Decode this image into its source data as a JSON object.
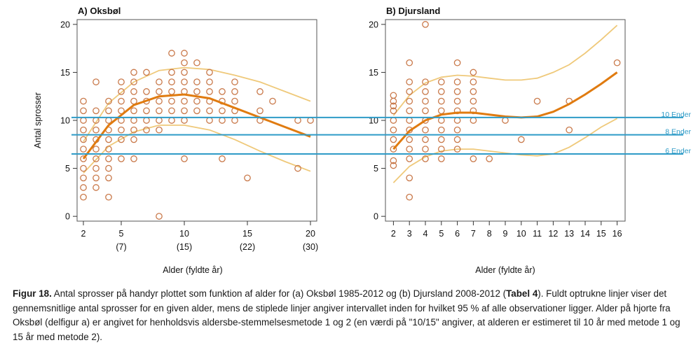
{
  "y_axis_label": "Antal sprosser",
  "reference_lines": [
    {
      "label": "10 Ender",
      "value": 10.3
    },
    {
      "label": "8 Ender",
      "value": 8.5
    },
    {
      "label": "6 Ender",
      "value": 6.5
    }
  ],
  "colors": {
    "point": "#c9794a",
    "mean_line": "#e07b10",
    "ci_line": "#efc97a",
    "reference_line": "#2e9bc7",
    "reference_label": "#2e9bc7"
  },
  "caption": {
    "lead": "Figur 18.",
    "text1": " Antal sprosser på handyr plottet som funktion af alder for (a) Oksbøl 1985-2012 og (b) Djursland 2008-2012 (",
    "bold_ref": "Tabel 4",
    "text2": "). Fuldt optrukne linjer viser det gennemsnitlige antal sprosser for en given alder, mens de stiplede linjer angiver intervallet inden for hvilket 95 % af alle observationer ligger. Alder på hjorte fra Oksbøl (delfigur a) er angivet for henholdsvis aldersbe-stemmelsesmetode 1 og 2 (en værdi på \"10/15\" angiver, at alderen er estimeret til 10 år med metode 1 og 15 år med metode 2)."
  },
  "chart_data": [
    {
      "type": "scatter",
      "title": "A) Oksbøl",
      "xlabel": "Alder (fyldte år)",
      "ylabel": "Antal sprosser",
      "xlim": [
        1.5,
        20.5
      ],
      "ylim": [
        -0.5,
        20.5
      ],
      "x_ticks": [
        2,
        5,
        10,
        15,
        20
      ],
      "x_ticks_secondary": [
        "(7)",
        "(15)",
        "(22)",
        "(30)"
      ],
      "x_ticks_secondary_at": [
        5,
        10,
        15,
        20
      ],
      "y_ticks": [
        0,
        5,
        10,
        15,
        20
      ],
      "points": [
        [
          2,
          2
        ],
        [
          2,
          3
        ],
        [
          2,
          4
        ],
        [
          2,
          5
        ],
        [
          2,
          6
        ],
        [
          2,
          7
        ],
        [
          2,
          8
        ],
        [
          2,
          9
        ],
        [
          2,
          10
        ],
        [
          2,
          11
        ],
        [
          2,
          12
        ],
        [
          3,
          3
        ],
        [
          3,
          4
        ],
        [
          3,
          5
        ],
        [
          3,
          6
        ],
        [
          3,
          7
        ],
        [
          3,
          8
        ],
        [
          3,
          9
        ],
        [
          3,
          10
        ],
        [
          3,
          11
        ],
        [
          3,
          14
        ],
        [
          4,
          2
        ],
        [
          4,
          4
        ],
        [
          4,
          5
        ],
        [
          4,
          6
        ],
        [
          4,
          7
        ],
        [
          4,
          8
        ],
        [
          4,
          9
        ],
        [
          4,
          10
        ],
        [
          4,
          11
        ],
        [
          4,
          12
        ],
        [
          5,
          6
        ],
        [
          5,
          8
        ],
        [
          5,
          9
        ],
        [
          5,
          10
        ],
        [
          5,
          11
        ],
        [
          5,
          12
        ],
        [
          5,
          13
        ],
        [
          5,
          14
        ],
        [
          6,
          6
        ],
        [
          6,
          8
        ],
        [
          6,
          9
        ],
        [
          6,
          10
        ],
        [
          6,
          11
        ],
        [
          6,
          12
        ],
        [
          6,
          13
        ],
        [
          6,
          14
        ],
        [
          6,
          15
        ],
        [
          7,
          9
        ],
        [
          7,
          10
        ],
        [
          7,
          11
        ],
        [
          7,
          12
        ],
        [
          7,
          13
        ],
        [
          7,
          15
        ],
        [
          8,
          0
        ],
        [
          8,
          9
        ],
        [
          8,
          10
        ],
        [
          8,
          11
        ],
        [
          8,
          12
        ],
        [
          8,
          13
        ],
        [
          8,
          14
        ],
        [
          9,
          10
        ],
        [
          9,
          11
        ],
        [
          9,
          12
        ],
        [
          9,
          13
        ],
        [
          9,
          14
        ],
        [
          9,
          15
        ],
        [
          9,
          17
        ],
        [
          10,
          6
        ],
        [
          10,
          10
        ],
        [
          10,
          11
        ],
        [
          10,
          12
        ],
        [
          10,
          13
        ],
        [
          10,
          14
        ],
        [
          10,
          15
        ],
        [
          10,
          16
        ],
        [
          10,
          17
        ],
        [
          11,
          11
        ],
        [
          11,
          12
        ],
        [
          11,
          13
        ],
        [
          11,
          14
        ],
        [
          11,
          16
        ],
        [
          12,
          10
        ],
        [
          12,
          11
        ],
        [
          12,
          12
        ],
        [
          12,
          13
        ],
        [
          12,
          14
        ],
        [
          12,
          15
        ],
        [
          13,
          6
        ],
        [
          13,
          10
        ],
        [
          13,
          11
        ],
        [
          13,
          12
        ],
        [
          13,
          13
        ],
        [
          14,
          10
        ],
        [
          14,
          11
        ],
        [
          14,
          12
        ],
        [
          14,
          13
        ],
        [
          14,
          14
        ],
        [
          15,
          4
        ],
        [
          16,
          10
        ],
        [
          16,
          11
        ],
        [
          16,
          13
        ],
        [
          17,
          12
        ],
        [
          19,
          5
        ],
        [
          19,
          10
        ],
        [
          20,
          10
        ]
      ],
      "mean_curve": [
        [
          2,
          6
        ],
        [
          4,
          9.5
        ],
        [
          6,
          11.6
        ],
        [
          8,
          12.5
        ],
        [
          10,
          12.7
        ],
        [
          12,
          12.3
        ],
        [
          14,
          11.3
        ],
        [
          16,
          10.3
        ],
        [
          18,
          9.3
        ],
        [
          20,
          8.3
        ]
      ],
      "upper_ci": [
        [
          2,
          7.8
        ],
        [
          4,
          11.8
        ],
        [
          6,
          14
        ],
        [
          8,
          15.2
        ],
        [
          10,
          15.5
        ],
        [
          12,
          15.3
        ],
        [
          14,
          14.7
        ],
        [
          16,
          14
        ],
        [
          18,
          13
        ],
        [
          20,
          12
        ]
      ],
      "lower_ci": [
        [
          2,
          4.5
        ],
        [
          4,
          7.3
        ],
        [
          6,
          8.8
        ],
        [
          8,
          9.5
        ],
        [
          10,
          9.5
        ],
        [
          12,
          9
        ],
        [
          14,
          8
        ],
        [
          16,
          6.8
        ],
        [
          18,
          5.7
        ],
        [
          20,
          4.7
        ]
      ]
    },
    {
      "type": "scatter",
      "title": "B) Djursland",
      "xlabel": "Alder (fyldte år)",
      "ylabel": "",
      "xlim": [
        1.5,
        16.5
      ],
      "ylim": [
        -0.5,
        20.5
      ],
      "x_ticks": [
        2,
        3,
        4,
        5,
        6,
        7,
        8,
        9,
        10,
        11,
        12,
        13,
        14,
        15,
        16
      ],
      "y_ticks": [
        0,
        5,
        10,
        15,
        20
      ],
      "points": [
        [
          2,
          5.3
        ],
        [
          2,
          5.8
        ],
        [
          2,
          7
        ],
        [
          2,
          8
        ],
        [
          2,
          9
        ],
        [
          2,
          10
        ],
        [
          2,
          11
        ],
        [
          2,
          11.5
        ],
        [
          2,
          12
        ],
        [
          2,
          12.6
        ],
        [
          3,
          2
        ],
        [
          3,
          4
        ],
        [
          3,
          6
        ],
        [
          3,
          7
        ],
        [
          3,
          8
        ],
        [
          3,
          9
        ],
        [
          3,
          10
        ],
        [
          3,
          11
        ],
        [
          3,
          12
        ],
        [
          3,
          13
        ],
        [
          3,
          14
        ],
        [
          3,
          16
        ],
        [
          4,
          6
        ],
        [
          4,
          7
        ],
        [
          4,
          8
        ],
        [
          4,
          9
        ],
        [
          4,
          10
        ],
        [
          4,
          11
        ],
        [
          4,
          12
        ],
        [
          4,
          13
        ],
        [
          4,
          14
        ],
        [
          4,
          20
        ],
        [
          5,
          6
        ],
        [
          5,
          7
        ],
        [
          5,
          8
        ],
        [
          5,
          9
        ],
        [
          5,
          10
        ],
        [
          5,
          11
        ],
        [
          5,
          12
        ],
        [
          5,
          13
        ],
        [
          5,
          14
        ],
        [
          6,
          7
        ],
        [
          6,
          8
        ],
        [
          6,
          9
        ],
        [
          6,
          10
        ],
        [
          6,
          11
        ],
        [
          6,
          12
        ],
        [
          6,
          13
        ],
        [
          6,
          14
        ],
        [
          6,
          16
        ],
        [
          7,
          6
        ],
        [
          7,
          10
        ],
        [
          7,
          11
        ],
        [
          7,
          12
        ],
        [
          7,
          13
        ],
        [
          7,
          14
        ],
        [
          7,
          15
        ],
        [
          8,
          6
        ],
        [
          9,
          10
        ],
        [
          10,
          8
        ],
        [
          11,
          12
        ],
        [
          13,
          9
        ],
        [
          13,
          12
        ],
        [
          16,
          16
        ]
      ],
      "mean_curve": [
        [
          2,
          7
        ],
        [
          3,
          8.9
        ],
        [
          4,
          10
        ],
        [
          5,
          10.6
        ],
        [
          6,
          10.8
        ],
        [
          7,
          10.8
        ],
        [
          8,
          10.6
        ],
        [
          9,
          10.4
        ],
        [
          10,
          10.3
        ],
        [
          11,
          10.4
        ],
        [
          12,
          10.9
        ],
        [
          13,
          11.7
        ],
        [
          14,
          12.7
        ],
        [
          15,
          13.8
        ],
        [
          16,
          15
        ]
      ],
      "upper_ci": [
        [
          2,
          10.5
        ],
        [
          3,
          12.6
        ],
        [
          4,
          13.9
        ],
        [
          5,
          14.5
        ],
        [
          6,
          14.7
        ],
        [
          7,
          14.6
        ],
        [
          8,
          14.4
        ],
        [
          9,
          14.2
        ],
        [
          10,
          14.2
        ],
        [
          11,
          14.4
        ],
        [
          12,
          15
        ],
        [
          13,
          15.8
        ],
        [
          14,
          17
        ],
        [
          15,
          18.4
        ],
        [
          16,
          19.9
        ]
      ],
      "lower_ci": [
        [
          2,
          3.5
        ],
        [
          3,
          5.2
        ],
        [
          4,
          6.2
        ],
        [
          5,
          6.8
        ],
        [
          6,
          7
        ],
        [
          7,
          7
        ],
        [
          8,
          6.8
        ],
        [
          9,
          6.6
        ],
        [
          10,
          6.4
        ],
        [
          11,
          6.3
        ],
        [
          12,
          6.5
        ],
        [
          13,
          7.2
        ],
        [
          14,
          8.2
        ],
        [
          15,
          9.3
        ],
        [
          16,
          10.2
        ]
      ]
    }
  ]
}
